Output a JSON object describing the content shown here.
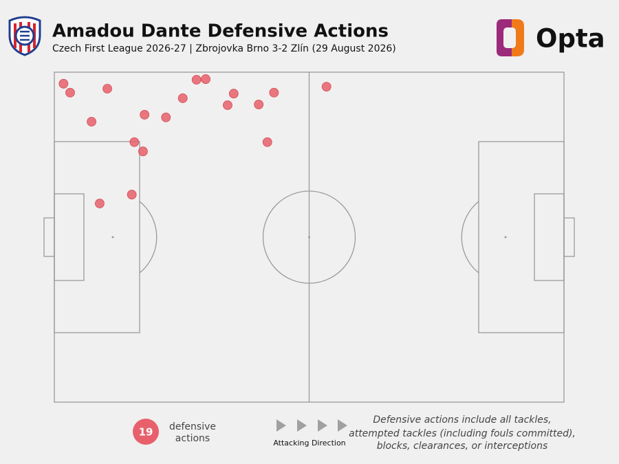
{
  "chart_data": {
    "type": "scatter",
    "title": "Amadou Dante Defensive Actions",
    "subtitle": "Czech First League 2026-27 | Zbrojovka Brno 3-2 Zlín (29 August 2026)",
    "brand": "Opta",
    "x": [
      1.8,
      3.1,
      10.4,
      7.3,
      17.7,
      21.9,
      25.2,
      27.9,
      29.7,
      35.2,
      34.0,
      40.1,
      43.1,
      53.4,
      41.8,
      15.7,
      17.4,
      15.2,
      8.9
    ],
    "values": [
      96.5,
      93.8,
      95.0,
      85.0,
      87.1,
      86.3,
      92.1,
      97.7,
      97.9,
      93.5,
      90.0,
      90.2,
      93.8,
      95.6,
      78.8,
      78.8,
      76.0,
      62.9,
      60.2
    ],
    "color": "#e8606b",
    "xlim": [
      0,
      100
    ],
    "ylim": [
      0,
      100
    ],
    "count": 19,
    "count_label": [
      "defensive",
      "actions"
    ],
    "direction_label": "Attacking Direction",
    "note": [
      "Defensive actions include all tackles,",
      "attempted tackles (including fouls committed),",
      "blocks, clearances, or interceptions"
    ]
  }
}
